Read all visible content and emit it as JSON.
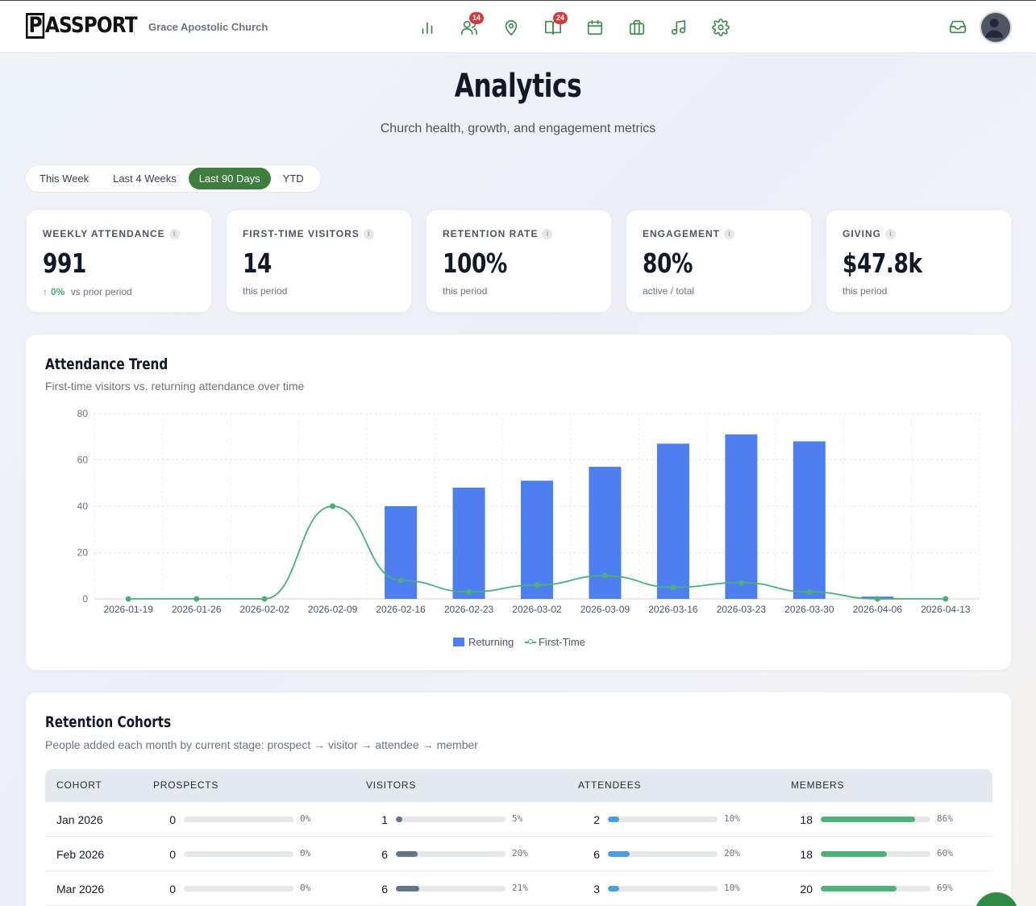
{
  "header": {
    "logo": "PASSPORT",
    "church_name": "Grace Apostolic Church",
    "nav": [
      {
        "name": "analytics-icon",
        "badge": ""
      },
      {
        "name": "people-icon",
        "badge": "14"
      },
      {
        "name": "location-icon",
        "badge": ""
      },
      {
        "name": "book-icon",
        "badge": "24"
      },
      {
        "name": "calendar-icon",
        "badge": ""
      },
      {
        "name": "briefcase-icon",
        "badge": ""
      },
      {
        "name": "music-icon",
        "badge": ""
      },
      {
        "name": "gear-icon",
        "badge": ""
      }
    ],
    "inbox_icon": "inbox-icon",
    "avatar_icon": "user-avatar-icon"
  },
  "page": {
    "title": "Analytics",
    "subtitle": "Church health, growth, and engagement metrics"
  },
  "periods": {
    "options": [
      "This Week",
      "Last 4 Weeks",
      "Last 90 Days",
      "YTD"
    ],
    "selected": "Last 90 Days"
  },
  "stats": [
    {
      "label": "WEEKLY ATTENDANCE",
      "value": "991",
      "delta": "0%",
      "note": "vs prior period"
    },
    {
      "label": "FIRST-TIME VISITORS",
      "value": "14",
      "note": "this period"
    },
    {
      "label": "RETENTION RATE",
      "value": "100%",
      "note": "this period"
    },
    {
      "label": "ENGAGEMENT",
      "value": "80%",
      "note": "active / total"
    },
    {
      "label": "GIVING",
      "value": "$47.8k",
      "note": "this period"
    }
  ],
  "attendance_panel": {
    "title": "Attendance Trend",
    "subtitle": "First-time visitors vs. returning attendance over time"
  },
  "chart_data": {
    "type": "bar",
    "categories": [
      "2026-01-19",
      "2026-01-26",
      "2026-02-02",
      "2026-02-09",
      "2026-02-16",
      "2026-02-23",
      "2026-03-02",
      "2026-03-09",
      "2026-03-16",
      "2026-03-23",
      "2026-03-30",
      "2026-04-06",
      "2026-04-13"
    ],
    "series": [
      {
        "name": "Returning",
        "type": "bar",
        "color": "#4e7ff0",
        "values": [
          0,
          0,
          0,
          0,
          40,
          48,
          51,
          57,
          67,
          71,
          68,
          1,
          0
        ]
      },
      {
        "name": "First-Time",
        "type": "line",
        "color": "#4caf7a",
        "values": [
          0,
          0,
          0,
          40,
          8,
          3,
          6,
          10,
          5,
          7,
          3,
          0,
          0
        ]
      }
    ],
    "ylim": [
      0,
      80
    ],
    "yticks": [
      0,
      20,
      40,
      60,
      80
    ],
    "grid": true,
    "legend": "bottom-center"
  },
  "cohorts": {
    "title": "Retention Cohorts",
    "subtitle": "People added each month by current stage: prospect → visitor → attendee → member",
    "headers": [
      "COHORT",
      "PROSPECTS",
      "VISITORS",
      "ATTENDEES",
      "MEMBERS"
    ],
    "rows": [
      {
        "name": "Jan 2026",
        "prospects": {
          "count": "0",
          "pct": "0%",
          "fraction": 0
        },
        "visitors": {
          "count": "1",
          "pct": "5%",
          "fraction": 0.05
        },
        "attendees": {
          "count": "2",
          "pct": "10%",
          "fraction": 0.1
        },
        "members": {
          "count": "18",
          "pct": "86%",
          "fraction": 0.86
        }
      },
      {
        "name": "Feb 2026",
        "prospects": {
          "count": "0",
          "pct": "0%",
          "fraction": 0
        },
        "visitors": {
          "count": "6",
          "pct": "20%",
          "fraction": 0.2
        },
        "attendees": {
          "count": "6",
          "pct": "20%",
          "fraction": 0.2
        },
        "members": {
          "count": "18",
          "pct": "60%",
          "fraction": 0.6
        }
      },
      {
        "name": "Mar 2026",
        "prospects": {
          "count": "0",
          "pct": "0%",
          "fraction": 0
        },
        "visitors": {
          "count": "6",
          "pct": "21%",
          "fraction": 0.21
        },
        "attendees": {
          "count": "3",
          "pct": "10%",
          "fraction": 0.1
        },
        "members": {
          "count": "20",
          "pct": "69%",
          "fraction": 0.69
        }
      }
    ],
    "colors": {
      "visitors": "#64748b",
      "attendees": "#4a9fe0",
      "members": "#4cb27a"
    }
  }
}
